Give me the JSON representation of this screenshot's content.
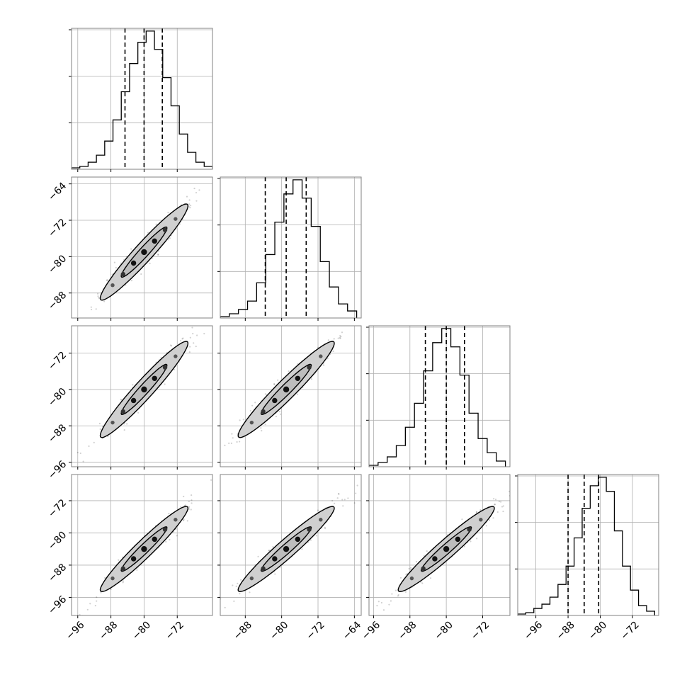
{
  "chart_data": {
    "type": "corner",
    "n_params": 4,
    "grid": true,
    "colors": {
      "line": "#000000",
      "grid": "#b0b0b0",
      "axes": "#808080",
      "fill": "#d0d0d0"
    },
    "params": [
      {
        "range": [
          -97.5,
          -63.5
        ],
        "center": -80.0,
        "sd": 4.6,
        "quantiles": [
          -84.6,
          -80.0,
          -75.6
        ]
      },
      {
        "range": [
          -93.5,
          -62.5
        ],
        "center": -79.0,
        "sd": 4.6,
        "quantiles": [
          -83.6,
          -79.0,
          -74.6
        ]
      },
      {
        "range": [
          -97.0,
          -66.0
        ],
        "center": -80.0,
        "sd": 4.6,
        "quantiles": [
          -84.6,
          -80.0,
          -76.0
        ]
      },
      {
        "range": [
          -100.5,
          -65.5
        ],
        "center": -84.0,
        "sd": 4.6,
        "quantiles": [
          -88.0,
          -84.0,
          -80.4
        ]
      }
    ],
    "ticks": [
      {
        "values": [
          -96,
          -88,
          -80,
          -72
        ],
        "labels": [
          "−96",
          "−88",
          "−80",
          "−72"
        ]
      },
      {
        "values": [
          -88,
          -80,
          -72,
          -64
        ],
        "labels": [
          "−88",
          "−80",
          "−72",
          "−64"
        ]
      },
      {
        "values": [
          -96,
          -88,
          -80,
          -72
        ],
        "labels": [
          "−96",
          "−88",
          "−80",
          "−72"
        ]
      },
      {
        "values": [
          -96,
          -88,
          -80,
          -72
        ],
        "labels": [
          "−96",
          "−88",
          "−80",
          "−72"
        ]
      }
    ],
    "row_ticks": [
      null,
      {
        "values": [
          -64,
          -72,
          -80,
          -88
        ],
        "labels": [
          "−64",
          "−72",
          "−80",
          "−88"
        ]
      },
      {
        "values": [
          -72,
          -80,
          -88,
          -96
        ],
        "labels": [
          "−72",
          "−80",
          "−88",
          "−96"
        ]
      },
      {
        "values": [
          -72,
          -80,
          -88,
          -96
        ],
        "labels": [
          "−72",
          "−80",
          "−88",
          "−96"
        ]
      }
    ],
    "histograms": [
      {
        "bin_edges": [
          -97.5,
          -95.5,
          -93.5,
          -91.5,
          -89.5,
          -87.5,
          -85.5,
          -83.5,
          -81.5,
          -79.5,
          -77.5,
          -75.5,
          -73.5,
          -71.5,
          -69.5,
          -67.5,
          -65.5,
          -63.5
        ],
        "counts": [
          1,
          2,
          5,
          10,
          20,
          35,
          55,
          75,
          90,
          98,
          85,
          65,
          45,
          25,
          12,
          5,
          2
        ]
      },
      {
        "bin_edges": [
          -93.5,
          -91.5,
          -89.5,
          -87.5,
          -85.5,
          -83.5,
          -81.5,
          -79.5,
          -77.5,
          -75.5,
          -73.5,
          -71.5,
          -69.5,
          -67.5,
          -65.5,
          -63.5
        ],
        "counts": [
          1,
          3,
          6,
          12,
          25,
          45,
          68,
          88,
          98,
          85,
          65,
          40,
          22,
          10,
          5
        ]
      },
      {
        "bin_edges": [
          -97,
          -95,
          -93,
          -91,
          -89,
          -87,
          -85,
          -83,
          -81,
          -79,
          -77,
          -75,
          -73,
          -71,
          -69,
          -67
        ],
        "counts": [
          1,
          3,
          7,
          15,
          28,
          45,
          68,
          88,
          98,
          85,
          65,
          38,
          20,
          10,
          4
        ]
      },
      {
        "bin_edges": [
          -100.5,
          -98.5,
          -96.5,
          -94.5,
          -92.5,
          -90.5,
          -88.5,
          -86.5,
          -84.5,
          -82.5,
          -80.5,
          -78.5,
          -76.5,
          -74.5,
          -72.5,
          -70.5,
          -68.5,
          -66.5
        ],
        "counts": [
          1,
          2,
          5,
          8,
          13,
          22,
          35,
          55,
          76,
          92,
          98,
          88,
          60,
          35,
          18,
          7,
          3
        ]
      }
    ],
    "correlation": 0.96,
    "contour_sigmas": [
      1.2,
      2.3
    ]
  }
}
